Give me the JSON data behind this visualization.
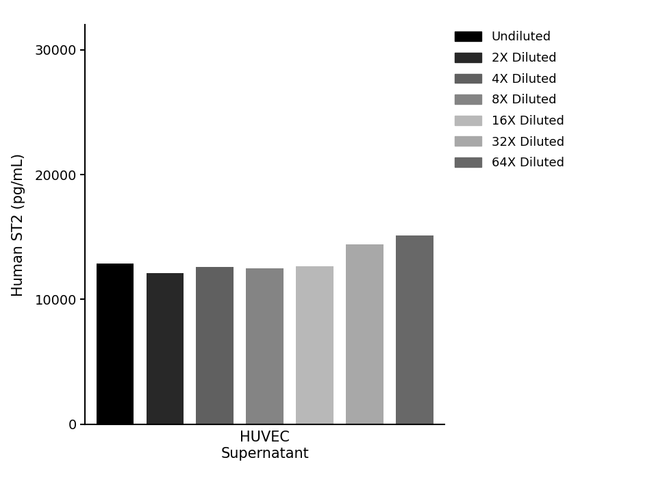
{
  "bars": [
    {
      "label": "Undiluted",
      "value": 12900,
      "color": "#000000"
    },
    {
      "label": "2X Diluted",
      "value": 12100,
      "color": "#282828"
    },
    {
      "label": "4X Diluted",
      "value": 12600,
      "color": "#606060"
    },
    {
      "label": "8X Diluted",
      "value": 12500,
      "color": "#848484"
    },
    {
      "label": "16X Diluted",
      "value": 12650,
      "color": "#b8b8b8"
    },
    {
      "label": "32X Diluted",
      "value": 14400,
      "color": "#a8a8a8"
    },
    {
      "label": "64X Diluted",
      "value": 15100,
      "color": "#686868"
    }
  ],
  "ylabel": "Human ST2 (pg/mL)",
  "xlabel": "HUVEC\nSupernatant",
  "ylim": [
    0,
    32000
  ],
  "yticks": [
    0,
    10000,
    20000,
    30000
  ],
  "bar_width": 0.45,
  "bar_spacing": 0.6,
  "background_color": "#ffffff",
  "label_fontsize": 15,
  "tick_fontsize": 14,
  "legend_fontsize": 13
}
